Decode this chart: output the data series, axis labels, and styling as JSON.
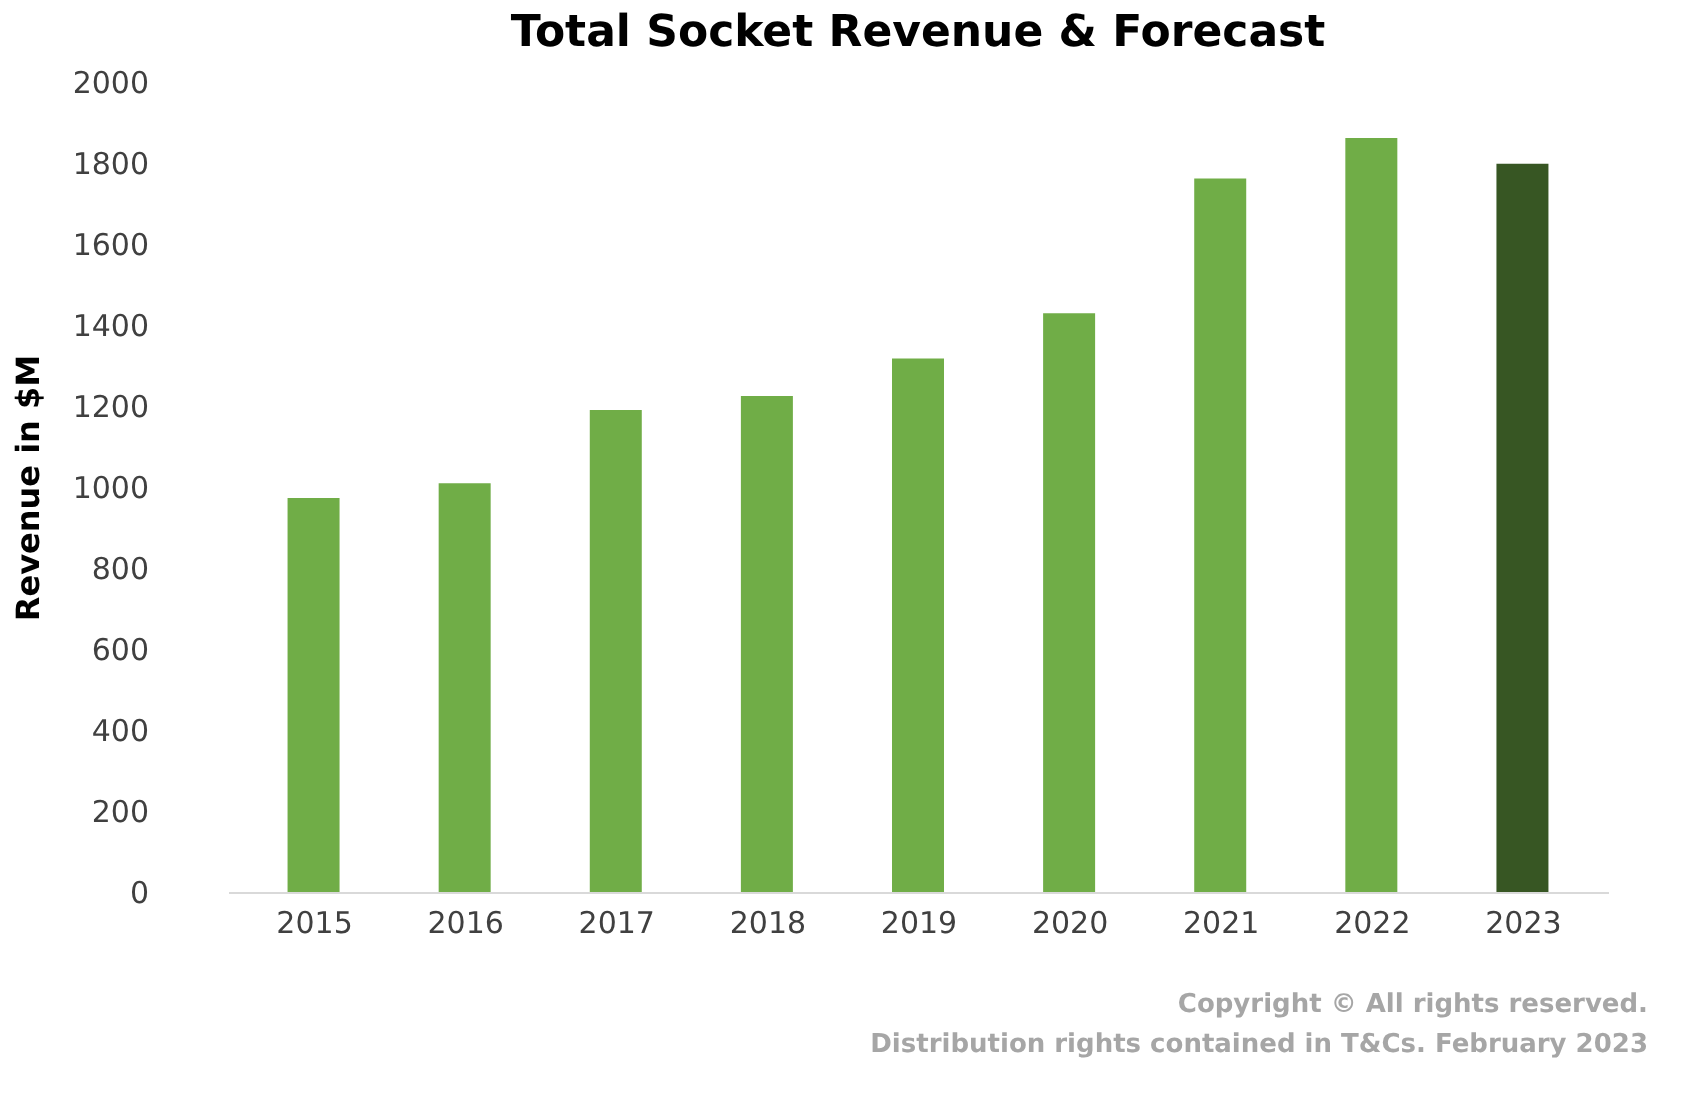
{
  "chart_data": {
    "type": "bar",
    "title": "Total Socket Revenue & Forecast",
    "ylabel": "Revenue in $M",
    "categories": [
      "2015",
      "2016",
      "2017",
      "2018",
      "2019",
      "2020",
      "2021",
      "2022",
      "2023"
    ],
    "values": [
      973,
      1009,
      1190,
      1225,
      1317,
      1429,
      1762,
      1862,
      1798
    ],
    "colors": [
      "#70ad47",
      "#70ad47",
      "#70ad47",
      "#70ad47",
      "#70ad47",
      "#70ad47",
      "#70ad47",
      "#70ad47",
      "#375623"
    ],
    "ylim": [
      0,
      2000
    ],
    "yticks": [
      0,
      200,
      400,
      600,
      800,
      1000,
      1200,
      1400,
      1600,
      1800,
      2000
    ],
    "grid": false,
    "annotations": [
      "Copyright © All rights reserved.",
      "Distribution rights contained in T&Cs. February 2023"
    ]
  }
}
